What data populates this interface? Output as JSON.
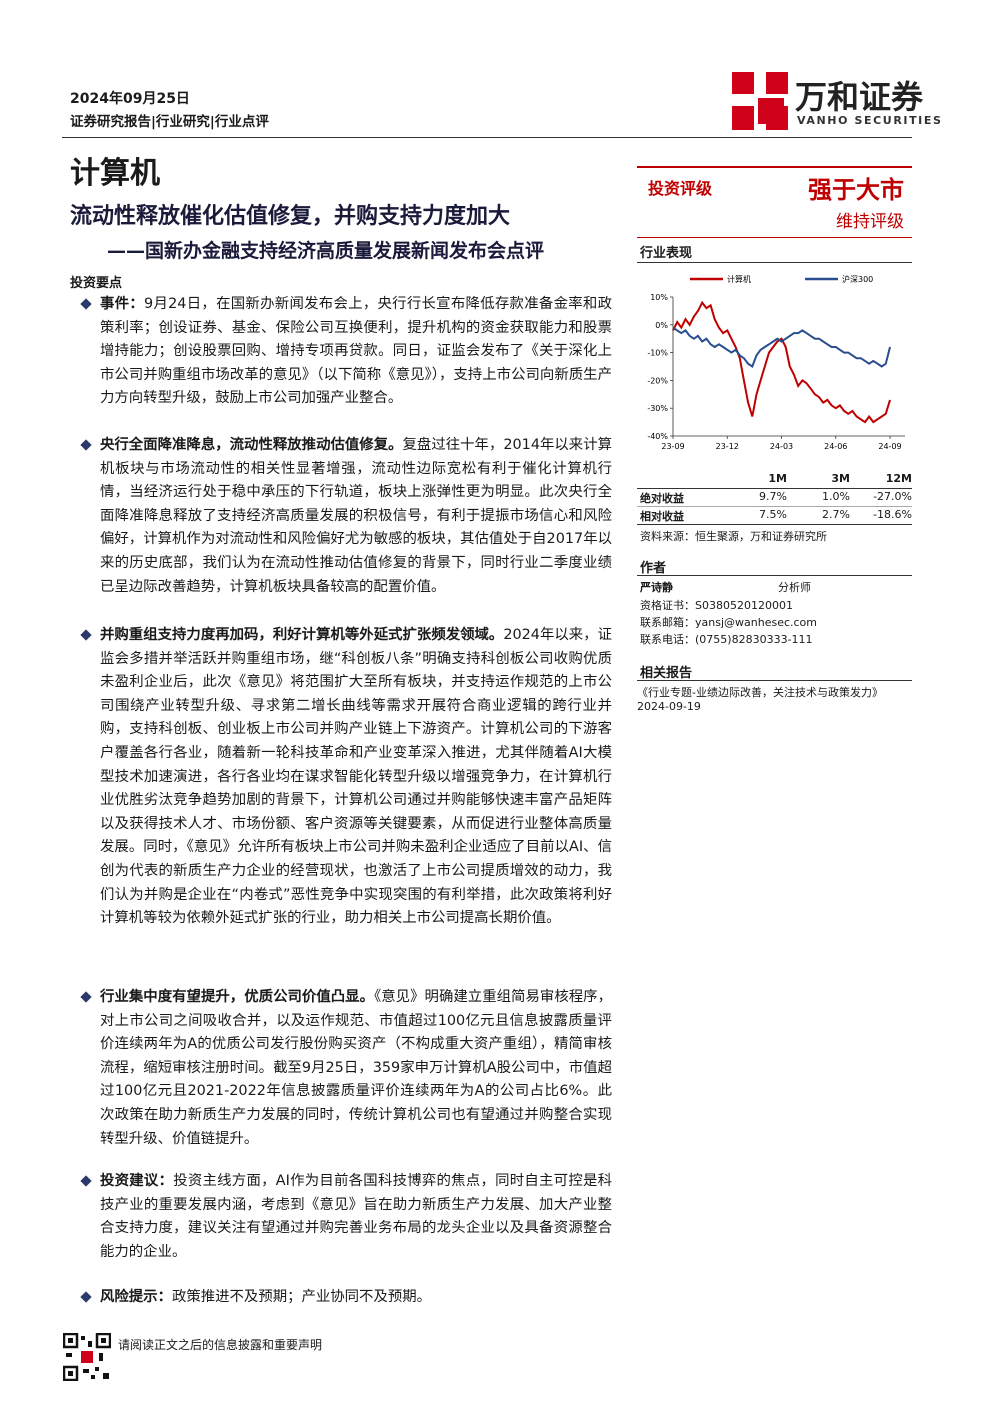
{
  "header": {
    "date": "2024年09月25日",
    "report_type": "证券研究报告|行业研究|行业点评",
    "brand": "万和证券",
    "brand_en": "VANHO SECURITIES"
  },
  "sector": "计算机",
  "headline": "流动性释放催化估值修复，并购支持力度加大",
  "subheadline": "——国新办金融支持经济高质量发展新闻发布会点评",
  "section_title": "投资要点",
  "bullets": [
    {
      "lead": "事件：",
      "text": "9月24日，在国新办新闻发布会上，央行行长宣布降低存款准备金率和政策利率；创设证券、基金、保险公司互换便利，提升机构的资金获取能力和股票增持能力；创设股票回购、增持专项再贷款。同日，证监会发布了《关于深化上市公司并购重组市场改革的意见》（以下简称《意见》），支持上市公司向新质生产力方向转型升级，鼓励上市公司加强产业整合。"
    },
    {
      "lead": "央行全面降准降息，流动性释放推动估值修复。",
      "text": "复盘过往十年，2014年以来计算机板块与市场流动性的相关性显著增强，流动性边际宽松有利于催化计算机行情，当经济运行处于稳中承压的下行轨道，板块上涨弹性更为明显。此次央行全面降准降息释放了支持经济高质量发展的积极信号，有利于提振市场信心和风险偏好，计算机作为对流动性和风险偏好尤为敏感的板块，其估值处于自2017年以来的历史底部，我们认为在流动性推动估值修复的背景下，同时行业二季度业绩已呈边际改善趋势，计算机板块具备较高的配置价值。"
    },
    {
      "lead": "并购重组支持力度再加码，利好计算机等外延式扩张频发领域。",
      "text": "2024年以来，证监会多措并举活跃并购重组市场，继“科创板八条”明确支持科创板公司收购优质未盈利企业后，此次《意见》将范围扩大至所有板块，并支持运作规范的上市公司围绕产业转型升级、寻求第二增长曲线等需求开展符合商业逻辑的跨行业并购，支持科创板、创业板上市公司并购产业链上下游资产。计算机公司的下游客户覆盖各行各业，随着新一轮科技革命和产业变革深入推进，尤其伴随着AI大模型技术加速演进，各行各业均在谋求智能化转型升级以增强竞争力，在计算机行业优胜劣汰竞争趋势加剧的背景下，计算机公司通过并购能够快速丰富产品矩阵以及获得技术人才、市场份额、客户资源等关键要素，从而促进行业整体高质量发展。同时，《意见》允许所有板块上市公司并购未盈利企业适应了目前以AI、信创为代表的新质生产力企业的经营现状，也激活了上市公司提质增效的动力，我们认为并购是企业在“内卷式”恶性竞争中实现突围的有利举措，此次政策将利好计算机等较为依赖外延式扩张的行业，助力相关上市公司提高长期价值。"
    },
    {
      "lead": "行业集中度有望提升，优质公司价值凸显。",
      "text": "《意见》明确建立重组简易审核程序，对上市公司之间吸收合并，以及运作规范、市值超过100亿元且信息披露质量评价连续两年为A的优质公司发行股份购买资产（不构成重大资产重组），精简审核流程，缩短审核注册时间。截至9月25日，359家申万计算机A股公司中，市值超过100亿元且2021-2022年信息披露质量评价连续两年为A的公司占比6%。此次政策在助力新质生产力发展的同时，传统计算机公司也有望通过并购整合实现转型升级、价值链提升。"
    },
    {
      "lead": "投资建议：",
      "text": "投资主线方面，AI作为目前各国科技博弈的焦点，同时自主可控是科技产业的重要发展内涵，考虑到《意见》旨在助力新质生产力发展、加大产业整合支持力度，建议关注有望通过并购完善业务布局的龙头企业以及具备资源整合能力的企业。"
    },
    {
      "lead": "风险提示：",
      "text": "政策推进不及预期；产业协同不及预期。"
    }
  ],
  "rating": {
    "label": "投资评级",
    "value": "强于大市",
    "note": "维持评级"
  },
  "chart_title": "行业表现",
  "chart_data": {
    "type": "line",
    "categories": [
      "23-09",
      null,
      null,
      null,
      null,
      null,
      null,
      null,
      null,
      null,
      null,
      null,
      null,
      "23-12",
      null,
      null,
      null,
      null,
      null,
      null,
      null,
      null,
      null,
      null,
      null,
      null,
      "24-03",
      null,
      null,
      null,
      null,
      null,
      null,
      null,
      null,
      null,
      null,
      null,
      null,
      "24-06",
      null,
      null,
      null,
      null,
      null,
      null,
      null,
      null,
      null,
      null,
      null,
      null,
      "24-09"
    ],
    "series": [
      {
        "name": "计算机",
        "color": "#c00000",
        "values": [
          -2,
          1,
          -1,
          2,
          0,
          3,
          5,
          8,
          6,
          7,
          2,
          -1,
          -3,
          -2,
          -5,
          -8,
          -12,
          -20,
          -28,
          -33,
          -25,
          -20,
          -15,
          -10,
          -8,
          -6,
          -5,
          -8,
          -15,
          -18,
          -22,
          -20,
          -21,
          -23,
          -25,
          -26,
          -28,
          -27,
          -29,
          -30,
          -29,
          -31,
          -32,
          -31,
          -33,
          -34,
          -35,
          -33,
          -35,
          -34,
          -33,
          -32,
          -27
        ]
      },
      {
        "name": "沪深300",
        "color": "#2a4d8f",
        "values": [
          -1,
          -2,
          -3,
          -2,
          -4,
          -5,
          -4,
          -6,
          -5,
          -7,
          -8,
          -7,
          -8,
          -9,
          -10,
          -9,
          -11,
          -12,
          -14,
          -15,
          -11,
          -9,
          -8,
          -7,
          -6,
          -5,
          -6,
          -5,
          -4,
          -3,
          -3,
          -2,
          -3,
          -4,
          -5,
          -5,
          -6,
          -7,
          -8,
          -8,
          -9,
          -10,
          -10,
          -11,
          -12,
          -12,
          -13,
          -14,
          -13,
          -14,
          -15,
          -14,
          -8
        ]
      }
    ],
    "ylim": [
      -40,
      10
    ],
    "yticks": [
      {
        "value": 10,
        "label": "10%"
      },
      {
        "value": 0,
        "label": "0%"
      },
      {
        "value": -10,
        "label": "-10%"
      },
      {
        "value": -20,
        "label": "-20%"
      },
      {
        "value": -30,
        "label": "-30%"
      },
      {
        "value": -40,
        "label": "-40%"
      }
    ]
  },
  "returns": {
    "columns": [
      "1M",
      "3M",
      "12M"
    ],
    "rows": [
      {
        "label": "绝对收益",
        "values": [
          "9.7%",
          "1.0%",
          "-27.0%"
        ]
      },
      {
        "label": "相对收益",
        "values": [
          "7.5%",
          "2.7%",
          "-18.6%"
        ]
      }
    ],
    "source": "资料来源：恒生聚源，万和证券研究所"
  },
  "author": {
    "title": "作者",
    "name": "严诗静",
    "role": "分析师",
    "cert": "资格证书：S0380520120001",
    "email": "联系邮箱：yansj@wanhesec.com",
    "phone": "联系电话：(0755)82830333-111"
  },
  "related": {
    "title": "相关报告",
    "report": "《行业专题-业绩边际改善，关注技术与政策发力》",
    "date": "2024-09-19"
  },
  "footer": "请阅读正文之后的信息披露和重要声明"
}
